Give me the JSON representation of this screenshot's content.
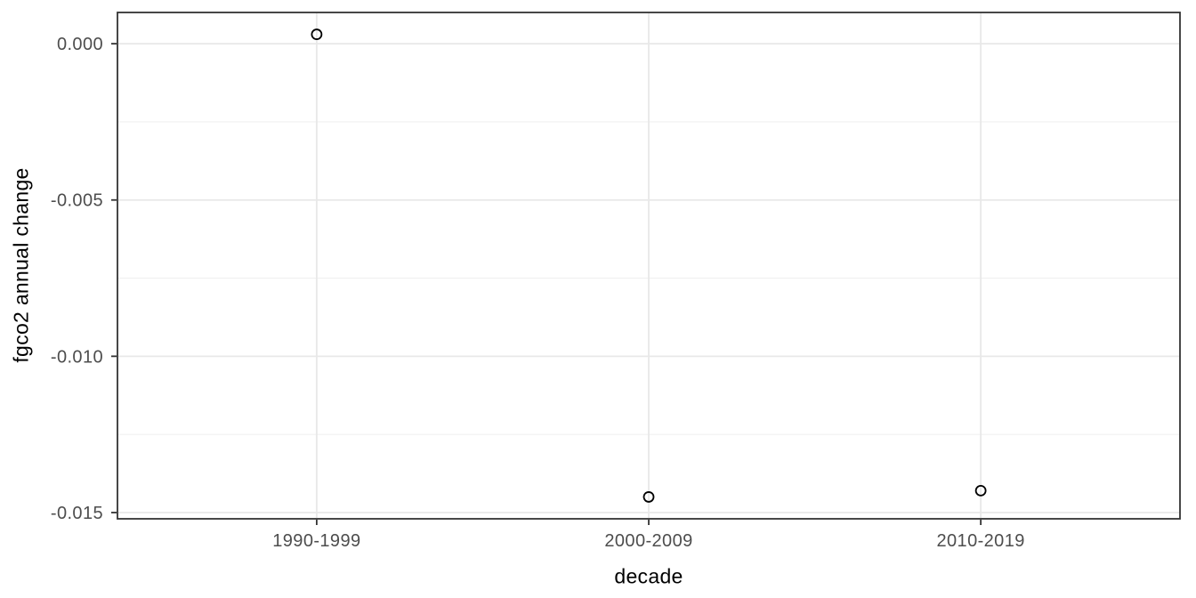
{
  "figure": {
    "background": "#ffffff"
  },
  "chart_data": {
    "type": "scatter",
    "title": "",
    "xlabel": "decade",
    "ylabel": "fgco2 annual change",
    "categories": [
      "1990-1999",
      "2000-2009",
      "2010-2019"
    ],
    "values": [
      0.0003,
      -0.0145,
      -0.0143
    ],
    "ylim": [
      -0.0152,
      0.001
    ],
    "yticks": [
      0,
      -0.005,
      -0.01,
      -0.015
    ],
    "ytick_labels": [
      "0.000",
      "-0.005",
      "-0.010",
      "-0.015"
    ],
    "minor_yticks": [
      -0.0025,
      -0.0075,
      -0.0125
    ],
    "grid": true,
    "legend": "none",
    "marker": "open-circle",
    "style": {
      "point_color": "#000000",
      "point_fill": "none",
      "grid_major_color": "#e8e8e8",
      "grid_minor_color": "#f0f0f0",
      "panel_border_color": "#333333",
      "tick_color": "#333333",
      "tick_label_color": "#4d4d4d",
      "axis_title_color": "#000000",
      "panel_background": "#ffffff"
    }
  }
}
